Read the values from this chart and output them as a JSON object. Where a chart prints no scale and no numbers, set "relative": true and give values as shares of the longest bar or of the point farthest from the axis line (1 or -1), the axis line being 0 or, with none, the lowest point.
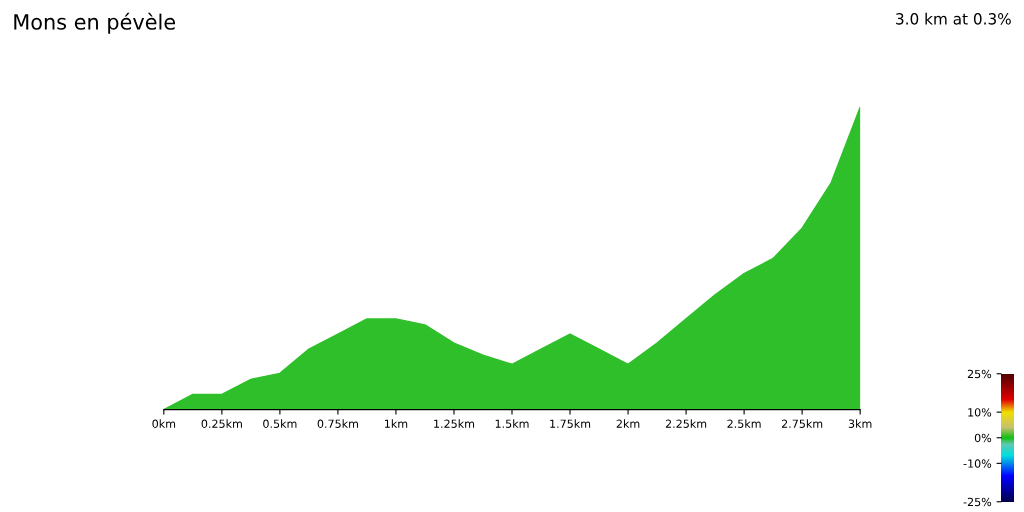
{
  "chart_data": {
    "type": "area",
    "title": "Mons en pévèle",
    "subtitle": "3.0 km at 0.3%",
    "relative": true,
    "x": [
      0,
      0.125,
      0.25,
      0.375,
      0.5,
      0.625,
      0.75,
      0.875,
      1.0,
      1.125,
      1.25,
      1.375,
      1.5,
      1.625,
      1.75,
      1.875,
      2.0,
      2.125,
      2.25,
      2.375,
      2.5,
      2.625,
      2.75,
      2.875,
      3.0
    ],
    "values": [
      0,
      0.05,
      0.05,
      0.1,
      0.12,
      0.2,
      0.25,
      0.3,
      0.3,
      0.28,
      0.22,
      0.18,
      0.15,
      0.2,
      0.25,
      0.2,
      0.15,
      0.22,
      0.3,
      0.38,
      0.45,
      0.5,
      0.6,
      0.75,
      1
    ],
    "color": "#2fbf2a",
    "clim": [
      -25,
      25
    ],
    "cticks": [
      {
        "value": -25,
        "label": "-25%"
      },
      {
        "value": -10,
        "label": "-10%"
      },
      {
        "value": 0,
        "label": "0%"
      },
      {
        "value": 10,
        "label": "10%"
      },
      {
        "value": 25,
        "label": "25%"
      }
    ],
    "xlim": [
      0,
      3
    ],
    "xticks": [
      {
        "value": 0,
        "label": "0km"
      },
      {
        "value": 0.25,
        "label": "0.25km"
      },
      {
        "value": 0.5,
        "label": "0.5km"
      },
      {
        "value": 0.75,
        "label": "0.75km"
      },
      {
        "value": 1,
        "label": "1km"
      },
      {
        "value": 1.25,
        "label": "1.25km"
      },
      {
        "value": 1.5,
        "label": "1.5km"
      },
      {
        "value": 1.75,
        "label": "1.75km"
      },
      {
        "value": 2,
        "label": "2km"
      },
      {
        "value": 2.25,
        "label": "2.25km"
      },
      {
        "value": 2.5,
        "label": "2.5km"
      },
      {
        "value": 2.75,
        "label": "2.75km"
      },
      {
        "value": 3,
        "label": "3km"
      }
    ],
    "grid": false
  }
}
